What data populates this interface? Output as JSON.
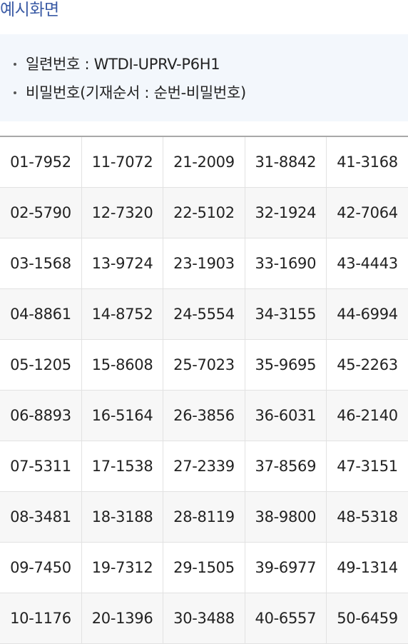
{
  "section": {
    "title": "예시화면"
  },
  "info": {
    "items": [
      "일련번호 : WTDI-UPRV-P6H1",
      "비밀번호(기재순서 : 순번-비밀번호)"
    ]
  },
  "codes": {
    "rows": [
      [
        "01-7952",
        "11-7072",
        "21-2009",
        "31-8842",
        "41-3168"
      ],
      [
        "02-5790",
        "12-7320",
        "22-5102",
        "32-1924",
        "42-7064"
      ],
      [
        "03-1568",
        "13-9724",
        "23-1903",
        "33-1690",
        "43-4443"
      ],
      [
        "04-8861",
        "14-8752",
        "24-5554",
        "34-3155",
        "44-6994"
      ],
      [
        "05-1205",
        "15-8608",
        "25-7023",
        "35-9695",
        "45-2263"
      ],
      [
        "06-8893",
        "16-5164",
        "26-3856",
        "36-6031",
        "46-2140"
      ],
      [
        "07-5311",
        "17-1538",
        "27-2339",
        "37-8569",
        "47-3151"
      ],
      [
        "08-3481",
        "18-3188",
        "28-8119",
        "38-9800",
        "48-5318"
      ],
      [
        "09-7450",
        "19-7312",
        "29-1505",
        "39-6977",
        "49-1314"
      ],
      [
        "10-1176",
        "20-1396",
        "30-3488",
        "40-6557",
        "50-6459"
      ]
    ]
  }
}
